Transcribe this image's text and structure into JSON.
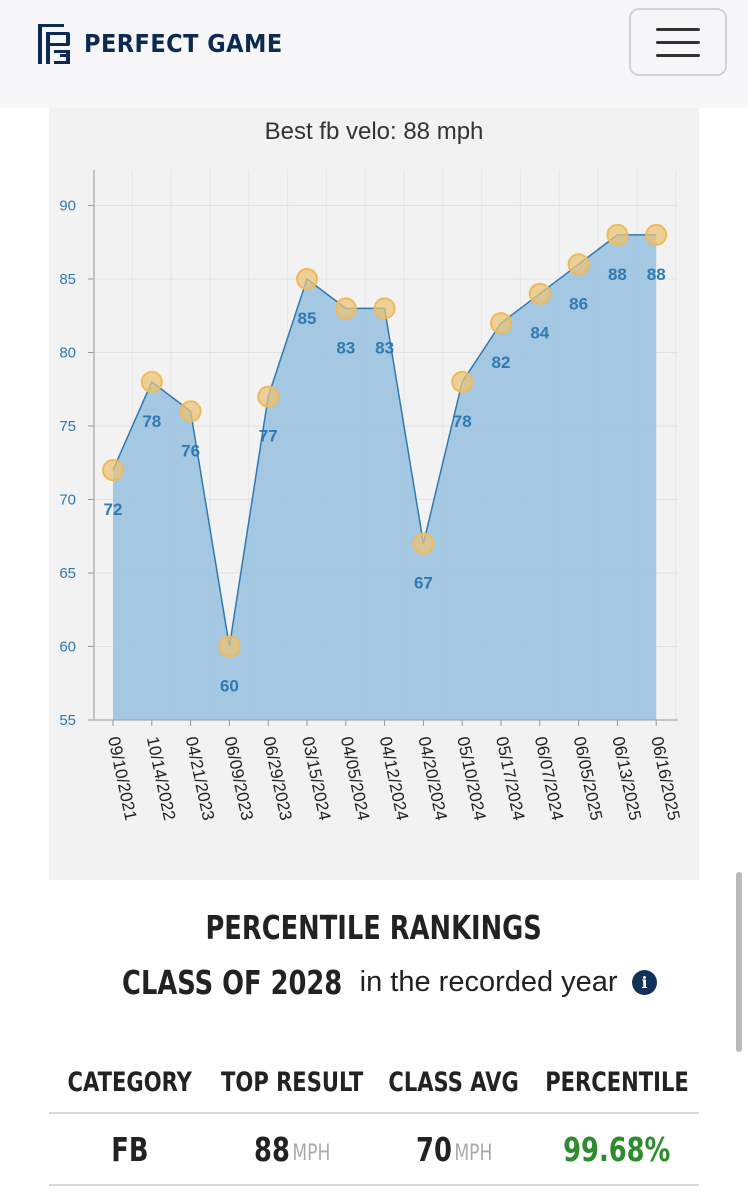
{
  "header": {
    "logo_text": "PERFECT GAME",
    "logo_icon": "pg-logo-icon",
    "menu_icon": "hamburger-menu-icon"
  },
  "chart": {
    "title": "Best fb velo: 88 mph"
  },
  "chart_data": {
    "type": "area",
    "title": "Best fb velo: 88 mph",
    "categories": [
      "09/10/2021",
      "10/14/2022",
      "04/21/2023",
      "06/09/2023",
      "06/29/2023",
      "03/15/2024",
      "04/05/2024",
      "04/12/2024",
      "04/20/2024",
      "05/10/2024",
      "05/17/2024",
      "06/07/2024",
      "06/05/2025",
      "06/13/2025",
      "06/16/2025"
    ],
    "values": [
      72,
      78,
      76,
      60,
      77,
      85,
      83,
      83,
      67,
      78,
      82,
      84,
      86,
      88,
      88
    ],
    "ylim": [
      55,
      92
    ],
    "yticks": [
      55,
      60,
      65,
      70,
      75,
      80,
      85,
      90
    ],
    "xlabel": "",
    "ylabel": "",
    "grid": true,
    "colors": {
      "area": "#9fc4e0",
      "line": "#2f7ab3",
      "label": "#2f7ab3",
      "marker_fill": "#e9c47a",
      "marker_stroke": "#f2b95a"
    }
  },
  "percentile": {
    "title": "PERCENTILE RANKINGS",
    "class_label": "CLASS OF 2028",
    "recorded_text": "in the recorded year",
    "info_icon": "info-icon",
    "headers": [
      "CATEGORY",
      "TOP RESULT",
      "CLASS AVG",
      "PERCENTILE"
    ],
    "rows": [
      {
        "category": "FB",
        "top_result": "88",
        "top_unit": "MPH",
        "class_avg": "70",
        "avg_unit": "MPH",
        "percentile": "99.68%"
      }
    ]
  }
}
